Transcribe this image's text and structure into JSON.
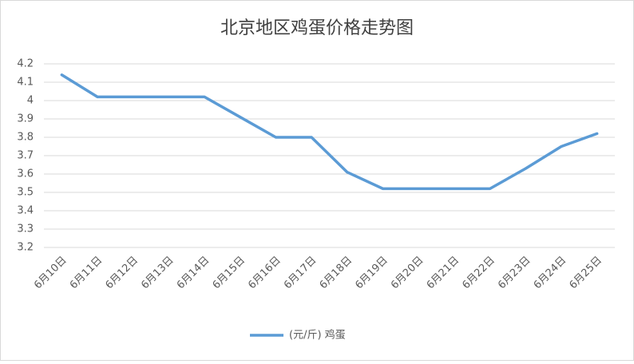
{
  "chart_data": {
    "type": "line",
    "title": "北京地区鸡蛋价格走势图",
    "categories": [
      "6月10日",
      "6月11日",
      "6月12日",
      "6月13日",
      "6月14日",
      "6月15日",
      "6月16日",
      "6月17日",
      "6月18日",
      "6月19日",
      "6月20日",
      "6月21日",
      "6月22日",
      "6月23日",
      "6月24日",
      "6月25日"
    ],
    "series": [
      {
        "name": "(元/斤) 鸡蛋",
        "color": "#5b9bd5",
        "values": [
          4.14,
          4.02,
          4.02,
          4.02,
          4.02,
          3.91,
          3.8,
          3.8,
          3.61,
          3.52,
          3.52,
          3.52,
          3.52,
          3.63,
          3.75,
          3.82
        ]
      }
    ],
    "ylim": [
      3.2,
      4.2
    ],
    "yticks": [
      3.2,
      3.3,
      3.4,
      3.5,
      3.6,
      3.7,
      3.8,
      3.9,
      4,
      4.1,
      4.2
    ],
    "grid": true
  }
}
